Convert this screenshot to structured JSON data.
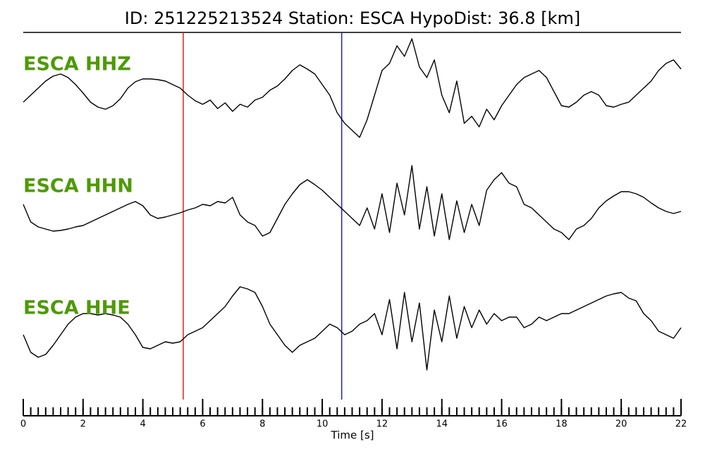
{
  "chart_data": {
    "type": "line",
    "title": "ID: 251225213524   Station: ESCA   HypoDist:    36.8 [km]",
    "xlabel": "Time [s]",
    "xlim": [
      0,
      22
    ],
    "xticks": [
      0,
      2,
      4,
      6,
      8,
      10,
      12,
      14,
      16,
      18,
      20,
      22
    ],
    "ylim": [
      -80,
      80
    ],
    "label_color": "#4e9a06",
    "markers": [
      {
        "x": 5.35,
        "color": "#e0201c"
      },
      {
        "x": 10.65,
        "color": "#1c1ce0"
      }
    ],
    "x": [
      0,
      0.25,
      0.5,
      0.75,
      1,
      1.25,
      1.5,
      1.75,
      2,
      2.25,
      2.5,
      2.75,
      3,
      3.25,
      3.5,
      3.75,
      4,
      4.25,
      4.5,
      4.75,
      5,
      5.25,
      5.5,
      5.75,
      6,
      6.25,
      6.5,
      6.75,
      7,
      7.25,
      7.5,
      7.75,
      8,
      8.25,
      8.5,
      8.75,
      9,
      9.25,
      9.5,
      9.75,
      10,
      10.25,
      10.5,
      10.75,
      11,
      11.25,
      11.5,
      11.75,
      12,
      12.25,
      12.5,
      12.75,
      13,
      13.25,
      13.5,
      13.75,
      14,
      14.25,
      14.5,
      14.75,
      15,
      15.25,
      15.5,
      15.75,
      16,
      16.25,
      16.5,
      16.75,
      17,
      17.25,
      17.5,
      17.75,
      18,
      18.25,
      18.5,
      18.75,
      19,
      19.25,
      19.5,
      19.75,
      20,
      20.25,
      20.5,
      20.75,
      21,
      21.25,
      21.5,
      21.75,
      22
    ],
    "series": [
      {
        "name": "ESCA HHZ",
        "color": "#000000",
        "values": [
          -5,
          5,
          15,
          25,
          32,
          35,
          30,
          20,
          8,
          -5,
          -12,
          -15,
          -10,
          0,
          15,
          24,
          28,
          28,
          27,
          25,
          20,
          15,
          5,
          -3,
          -8,
          -2,
          -14,
          -6,
          -18,
          -8,
          -12,
          -2,
          2,
          12,
          18,
          28,
          40,
          48,
          42,
          35,
          20,
          5,
          -20,
          -35,
          -45,
          -55,
          -30,
          5,
          40,
          50,
          75,
          60,
          85,
          45,
          30,
          55,
          5,
          -20,
          25,
          -35,
          -25,
          -40,
          -15,
          -30,
          -10,
          5,
          20,
          30,
          35,
          40,
          30,
          10,
          -10,
          -12,
          -5,
          5,
          10,
          5,
          -10,
          -12,
          -8,
          -5,
          5,
          15,
          25,
          40,
          50,
          55,
          42
        ]
      },
      {
        "name": "ESCA HHN",
        "color": "#000000",
        "values": [
          10,
          -15,
          -22,
          -25,
          -28,
          -27,
          -25,
          -22,
          -20,
          -15,
          -10,
          -5,
          0,
          5,
          10,
          14,
          8,
          -5,
          -10,
          -8,
          -5,
          -2,
          2,
          5,
          10,
          8,
          14,
          12,
          20,
          -5,
          -15,
          -20,
          -35,
          -30,
          -10,
          10,
          25,
          38,
          45,
          38,
          30,
          20,
          10,
          0,
          -10,
          -20,
          5,
          -25,
          25,
          -30,
          40,
          -5,
          65,
          -25,
          35,
          -35,
          25,
          -40,
          15,
          -30,
          10,
          -20,
          30,
          45,
          55,
          40,
          35,
          10,
          5,
          -5,
          -15,
          -25,
          -30,
          -40,
          -25,
          -20,
          -10,
          5,
          15,
          22,
          28,
          28,
          25,
          20,
          12,
          5,
          0,
          -3,
          0
        ]
      },
      {
        "name": "ESCA HHE",
        "color": "#000000",
        "values": [
          -10,
          -35,
          -42,
          -38,
          -25,
          -10,
          5,
          15,
          20,
          20,
          18,
          20,
          18,
          15,
          5,
          -10,
          -28,
          -30,
          -25,
          -20,
          -22,
          -20,
          -10,
          -5,
          0,
          10,
          20,
          30,
          45,
          58,
          55,
          50,
          30,
          5,
          -10,
          -25,
          -35,
          -25,
          -20,
          -15,
          -5,
          5,
          0,
          -10,
          -5,
          5,
          10,
          20,
          -10,
          40,
          -30,
          50,
          -20,
          35,
          -60,
          25,
          -20,
          45,
          -15,
          30,
          0,
          25,
          5,
          20,
          10,
          15,
          15,
          0,
          5,
          15,
          10,
          15,
          20,
          20,
          25,
          30,
          35,
          40,
          45,
          48,
          50,
          42,
          38,
          20,
          10,
          -5,
          -10,
          -15,
          0
        ]
      }
    ]
  }
}
